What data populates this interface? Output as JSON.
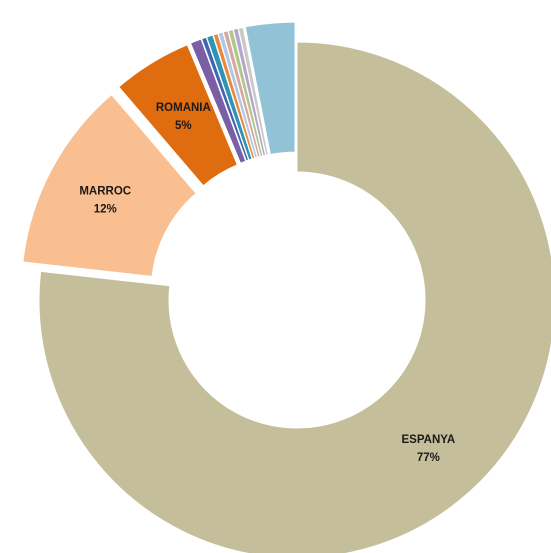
{
  "chart_data": {
    "type": "pie",
    "variant": "doughnut",
    "title": "",
    "slices": [
      {
        "category": "ESPANYA",
        "value": 77,
        "label": "77%",
        "color": "#c4be9a",
        "exploded": false,
        "show_label": true
      },
      {
        "category": "MARROC",
        "value": 12,
        "label": "12%",
        "color": "#f9bf90",
        "exploded": true,
        "show_label": true
      },
      {
        "category": "ROMANIA",
        "value": 5,
        "label": "5%",
        "color": "#e06c10",
        "exploded": true,
        "show_label": true
      },
      {
        "category": "",
        "value": 0.7,
        "label": "",
        "color": "#7a5ea6",
        "exploded": true,
        "show_label": false
      },
      {
        "category": "",
        "value": 0.3,
        "label": "",
        "color": "#3f66b0",
        "exploded": true,
        "show_label": false
      },
      {
        "category": "",
        "value": 0.4,
        "label": "",
        "color": "#2f93b4",
        "exploded": true,
        "show_label": false
      },
      {
        "category": "",
        "value": 0.3,
        "label": "",
        "color": "#e88a3c",
        "exploded": true,
        "show_label": false
      },
      {
        "category": "",
        "value": 0.3,
        "label": "",
        "color": "#b3c6e6",
        "exploded": true,
        "show_label": false
      },
      {
        "category": "",
        "value": 0.3,
        "label": "",
        "color": "#d6a99e",
        "exploded": true,
        "show_label": false
      },
      {
        "category": "",
        "value": 0.3,
        "label": "",
        "color": "#b0c78c",
        "exploded": true,
        "show_label": false
      },
      {
        "category": "",
        "value": 0.3,
        "label": "",
        "color": "#b5a7cc",
        "exploded": true,
        "show_label": false
      },
      {
        "category": "",
        "value": 0.3,
        "label": "",
        "color": "#c9c9c9",
        "exploded": true,
        "show_label": false
      },
      {
        "category": "",
        "value": 3.1,
        "label": "",
        "color": "#92c2d6",
        "exploded": true,
        "show_label": false
      }
    ]
  }
}
